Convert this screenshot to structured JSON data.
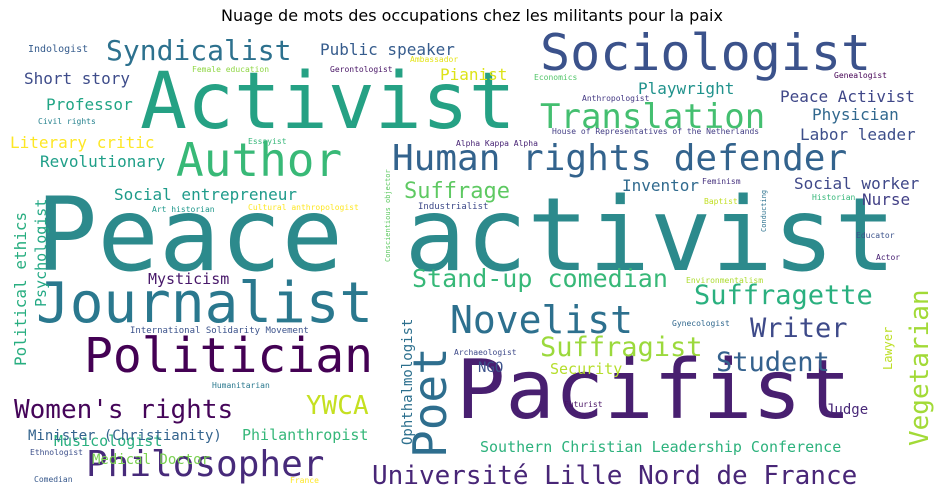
{
  "chart_data": {
    "type": "wordcloud",
    "title": "Nuage de mots des occupations chez les militants pour la paix",
    "words": [
      {
        "text": "Peace activist",
        "color": "#2c8a8c"
      },
      {
        "text": "Activist",
        "color": "#25a184"
      },
      {
        "text": "Pacifist",
        "color": "#481f70"
      },
      {
        "text": "Journalist",
        "color": "#2a788e"
      },
      {
        "text": "Sociologist",
        "color": "#3b528b"
      },
      {
        "text": "Politician",
        "color": "#440154"
      },
      {
        "text": "Author",
        "color": "#38b977"
      },
      {
        "text": "Human rights defender",
        "color": "#33638d"
      },
      {
        "text": "Philosopher",
        "color": "#472a7a"
      },
      {
        "text": "Poet",
        "color": "#2e6e8e"
      },
      {
        "text": "Novelist",
        "color": "#2d708e"
      },
      {
        "text": "Translation",
        "color": "#44bf70"
      },
      {
        "text": "Syndicalist",
        "color": "#2d718e"
      },
      {
        "text": "Women's rights",
        "color": "#450559"
      },
      {
        "text": "Université Lille Nord de France",
        "color": "#482677"
      },
      {
        "text": "Stand-up comedian",
        "color": "#37b878"
      },
      {
        "text": "Suffragette",
        "color": "#2ab07f"
      },
      {
        "text": "Suffragist",
        "color": "#9bd93c"
      },
      {
        "text": "Writer",
        "color": "#3e4a89"
      },
      {
        "text": "Student",
        "color": "#34618d"
      },
      {
        "text": "YWCA",
        "color": "#c5e021"
      },
      {
        "text": "Vegetarian",
        "color": "#a2da37"
      },
      {
        "text": "Suffrage",
        "color": "#5ec962"
      },
      {
        "text": "Playwright",
        "color": "#20928c"
      },
      {
        "text": "Peace Activist",
        "color": "#3f4788"
      },
      {
        "text": "Physician",
        "color": "#31688e"
      },
      {
        "text": "Labor leader",
        "color": "#3d4e8a"
      },
      {
        "text": "Social worker",
        "color": "#3f4889"
      },
      {
        "text": "Nurse",
        "color": "#424086"
      },
      {
        "text": "Inventor",
        "color": "#306a8e"
      },
      {
        "text": "Professor",
        "color": "#21a585"
      },
      {
        "text": "Short story",
        "color": "#3e4c8a"
      },
      {
        "text": "Public speaker",
        "color": "#365c8d"
      },
      {
        "text": "Pianist",
        "color": "#dde318"
      },
      {
        "text": "Literary critic",
        "color": "#fde725"
      },
      {
        "text": "Revolutionary",
        "color": "#1f9f88"
      },
      {
        "text": "Social entrepreneur",
        "color": "#1e9b8a"
      },
      {
        "text": "Mysticism",
        "color": "#48186a"
      },
      {
        "text": "Psychologist",
        "color": "#22a884"
      },
      {
        "text": "Political ethics",
        "color": "#28ae80"
      },
      {
        "text": "Musicologist",
        "color": "#2ab07f"
      },
      {
        "text": "Minister (Christianity)",
        "color": "#33638d"
      },
      {
        "text": "Philanthropist",
        "color": "#35b779"
      },
      {
        "text": "Southern Christian Leadership Conference",
        "color": "#2db27d"
      },
      {
        "text": "Medical Doctor",
        "color": "#7ad151"
      },
      {
        "text": "Ophthalmologist",
        "color": "#2d708e"
      },
      {
        "text": "Security",
        "color": "#b5de2b"
      },
      {
        "text": "NGO",
        "color": "#3b528b"
      },
      {
        "text": "Judge",
        "color": "#482878"
      },
      {
        "text": "Lawyer",
        "color": "#bddf26"
      },
      {
        "text": "Indologist",
        "color": "#365c8d"
      },
      {
        "text": "Female education",
        "color": "#8fd744"
      },
      {
        "text": "Gerontologist",
        "color": "#471365"
      },
      {
        "text": "Ambassador",
        "color": "#e5e419"
      },
      {
        "text": "Economics",
        "color": "#52c569"
      },
      {
        "text": "Genealogist",
        "color": "#440154"
      },
      {
        "text": "Anthropologist",
        "color": "#443983"
      },
      {
        "text": "Civil rights",
        "color": "#26828e"
      },
      {
        "text": "House of Representatives of the Netherlands",
        "color": "#433e85"
      },
      {
        "text": "Essayist",
        "color": "#35b779"
      },
      {
        "text": "Alpha Kappa Alpha",
        "color": "#482475"
      },
      {
        "text": "Art historian",
        "color": "#1f988b"
      },
      {
        "text": "Cultural anthropologist",
        "color": "#fde725"
      },
      {
        "text": "Conscientious objector",
        "color": "#5ec962"
      },
      {
        "text": "Industrialist",
        "color": "#3e4989"
      },
      {
        "text": "Feminism",
        "color": "#46327e"
      },
      {
        "text": "Baptist",
        "color": "#c2df23"
      },
      {
        "text": "Conducting",
        "color": "#2c728e"
      },
      {
        "text": "Historian",
        "color": "#35b779"
      },
      {
        "text": "Educator",
        "color": "#3b528b"
      },
      {
        "text": "Actor",
        "color": "#482173"
      },
      {
        "text": "Environmentalism",
        "color": "#addc30"
      },
      {
        "text": "Gynecologist",
        "color": "#31688e"
      },
      {
        "text": "International Solidarity Movement",
        "color": "#3b528b"
      },
      {
        "text": "Archaeologist",
        "color": "#3e4a89"
      },
      {
        "text": "Humanitarian",
        "color": "#2a788e"
      },
      {
        "text": "Futurist",
        "color": "#471063"
      },
      {
        "text": "Ethnologist",
        "color": "#3c4f8a"
      },
      {
        "text": "Comedian",
        "color": "#38598c"
      },
      {
        "text": "France",
        "color": "#fde725"
      }
    ]
  }
}
